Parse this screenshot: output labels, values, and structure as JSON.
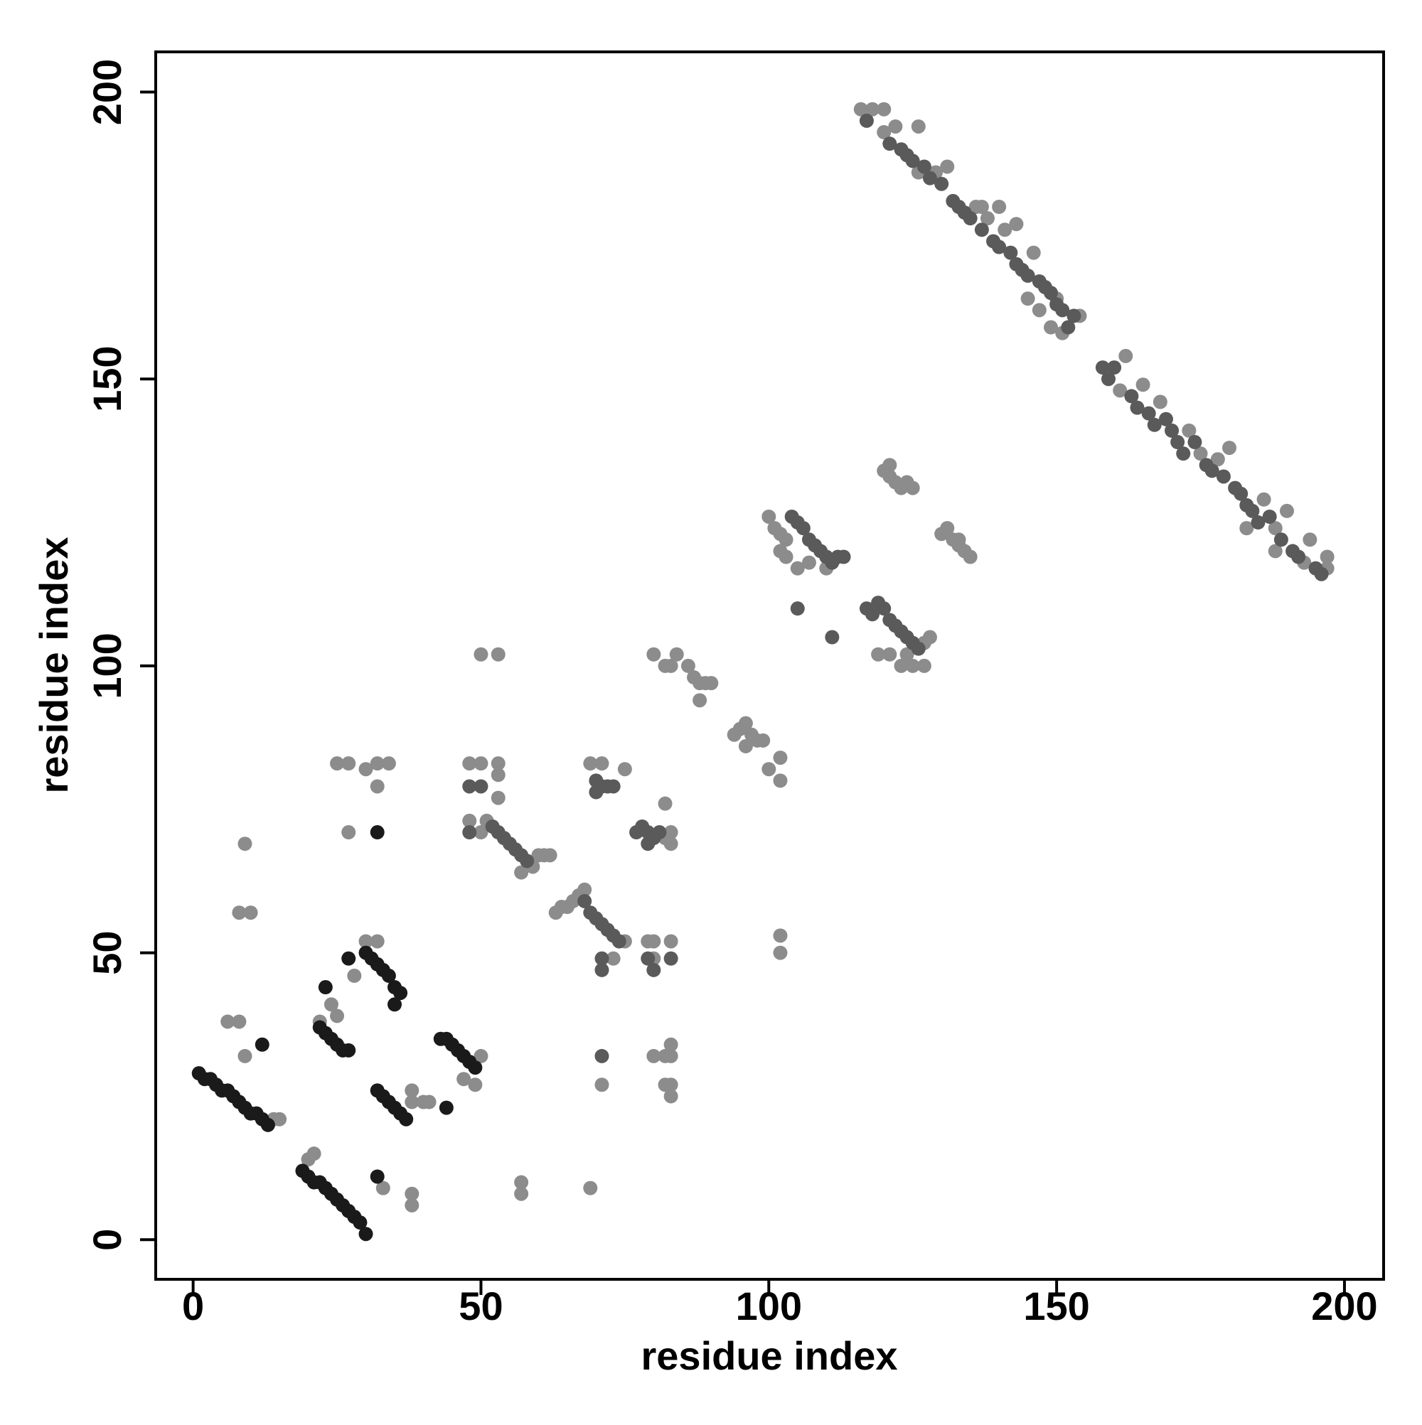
{
  "chart_data": {
    "type": "scatter",
    "xlabel": "residue index",
    "ylabel": "residue index",
    "xlim": [
      -6.5,
      206.8
    ],
    "ylim": [
      -6.9,
      207
    ],
    "xticks": [
      0,
      50,
      100,
      150,
      200
    ],
    "yticks": [
      0,
      50,
      100,
      150,
      200
    ],
    "series": [
      {
        "color": "#8c8c8c",
        "x": [
          14,
          15,
          20,
          21,
          22,
          24,
          25,
          28,
          30,
          32,
          38,
          40,
          41,
          38,
          50,
          47,
          49,
          9,
          8,
          10,
          6,
          8,
          9,
          25,
          27,
          27,
          32,
          34,
          30,
          32,
          33,
          38,
          38,
          57,
          57,
          69,
          71,
          50,
          53,
          51,
          59,
          60,
          61,
          62,
          57,
          50,
          48,
          48,
          50,
          53,
          53,
          53,
          63,
          64,
          65,
          66,
          67,
          68,
          75,
          73,
          69,
          71,
          75,
          82,
          83,
          83,
          82,
          79,
          80,
          83,
          80,
          83,
          82,
          83,
          82,
          83,
          83,
          80,
          80,
          82,
          84,
          83,
          86,
          87,
          88,
          89,
          90,
          88,
          94,
          95,
          96,
          97,
          98,
          96,
          99,
          102,
          100,
          102,
          102,
          102,
          100,
          101,
          102,
          103,
          102,
          103,
          105,
          107,
          110,
          127,
          128,
          119,
          121,
          123,
          125,
          127,
          124,
          120,
          121,
          122,
          123,
          124,
          125,
          121,
          130,
          131,
          132,
          133,
          134,
          135,
          133,
          116,
          118,
          120,
          120,
          122,
          126,
          126,
          129,
          131,
          136,
          138,
          140,
          141,
          143,
          146,
          137,
          145,
          147,
          151,
          154,
          149,
          150,
          161,
          162,
          165,
          168,
          173,
          175,
          178,
          180,
          186,
          188,
          190,
          193,
          194,
          197,
          197,
          183,
          188
        ],
        "values": [
          21,
          21,
          14,
          15,
          38,
          41,
          39,
          46,
          52,
          52,
          24,
          24,
          24,
          26,
          32,
          28,
          27,
          69,
          57,
          57,
          38,
          38,
          32,
          83,
          83,
          71,
          83,
          83,
          82,
          79,
          9,
          8,
          6,
          10,
          8,
          9,
          27,
          102,
          102,
          73,
          65,
          67,
          67,
          67,
          64,
          71,
          73,
          83,
          83,
          83,
          81,
          77,
          57,
          58,
          58,
          59,
          60,
          61,
          52,
          49,
          83,
          83,
          82,
          70,
          71,
          69,
          76,
          52,
          52,
          52,
          49,
          34,
          32,
          32,
          27,
          27,
          25,
          32,
          102,
          100,
          102,
          100,
          100,
          98,
          97,
          97,
          97,
          94,
          88,
          89,
          90,
          88,
          87,
          86,
          87,
          84,
          82,
          80,
          53,
          50,
          126,
          124,
          123,
          122,
          120,
          119,
          117,
          118,
          117,
          104,
          105,
          102,
          102,
          100,
          100,
          100,
          102,
          134,
          133,
          132,
          131,
          132,
          131,
          135,
          123,
          124,
          122,
          121,
          120,
          119,
          122,
          197,
          197,
          197,
          193,
          194,
          194,
          186,
          186,
          187,
          180,
          178,
          180,
          176,
          177,
          172,
          180,
          164,
          162,
          158,
          161,
          159,
          164,
          148,
          154,
          149,
          146,
          141,
          137,
          136,
          138,
          129,
          124,
          127,
          118,
          122,
          119,
          117,
          124,
          120
        ]
      },
      {
        "color": "#5a5a5a",
        "x": [
          52,
          53,
          54,
          55,
          56,
          57,
          58,
          68,
          69,
          70,
          71,
          72,
          73,
          74,
          71,
          71,
          70,
          71,
          72,
          73,
          70,
          77,
          78,
          79,
          80,
          81,
          79,
          79,
          83,
          80,
          104,
          105,
          106,
          107,
          108,
          109,
          110,
          111,
          112,
          113,
          117,
          118,
          119,
          120,
          121,
          122,
          123,
          124,
          125,
          126,
          117,
          121,
          123,
          124,
          125,
          127,
          128,
          130,
          132,
          133,
          134,
          135,
          137,
          139,
          140,
          142,
          143,
          144,
          145,
          147,
          148,
          149,
          150,
          151,
          152,
          153,
          158,
          159,
          160,
          163,
          164,
          166,
          167,
          169,
          170,
          171,
          172,
          174,
          176,
          177,
          179,
          181,
          182,
          183,
          184,
          185,
          187,
          189,
          191,
          192,
          195,
          196,
          48,
          50,
          48,
          71,
          105,
          111
        ],
        "values": [
          72,
          71,
          70,
          69,
          68,
          67,
          66,
          59,
          57,
          56,
          55,
          54,
          53,
          52,
          49,
          47,
          80,
          79,
          79,
          79,
          78,
          71,
          72,
          71,
          70,
          71,
          69,
          49,
          49,
          47,
          126,
          125,
          124,
          122,
          121,
          120,
          119,
          118,
          119,
          119,
          110,
          109,
          111,
          110,
          108,
          107,
          106,
          105,
          104,
          103,
          195,
          191,
          190,
          189,
          188,
          187,
          185,
          184,
          181,
          180,
          179,
          178,
          176,
          174,
          173,
          172,
          170,
          169,
          168,
          167,
          166,
          165,
          163,
          162,
          159,
          161,
          152,
          150,
          152,
          147,
          145,
          144,
          142,
          143,
          141,
          139,
          137,
          139,
          135,
          134,
          133,
          131,
          130,
          128,
          127,
          125,
          126,
          122,
          120,
          119,
          117,
          116,
          79,
          79,
          71,
          32,
          110,
          105
        ]
      },
      {
        "color": "#1a1a1a",
        "x": [
          1,
          2,
          3,
          4,
          5,
          6,
          7,
          8,
          9,
          10,
          11,
          12,
          13,
          19,
          20,
          21,
          22,
          23,
          24,
          25,
          26,
          27,
          28,
          29,
          30,
          22,
          23,
          24,
          25,
          26,
          27,
          23,
          30,
          31,
          32,
          33,
          34,
          35,
          36,
          35,
          27,
          32,
          33,
          34,
          35,
          36,
          37,
          43,
          44,
          45,
          46,
          47,
          48,
          49,
          44,
          32,
          32,
          12
        ],
        "values": [
          29,
          28,
          28,
          27,
          26,
          26,
          25,
          24,
          23,
          22,
          22,
          21,
          20,
          12,
          11,
          10,
          10,
          9,
          8,
          7,
          6,
          5,
          4,
          3,
          1,
          37,
          36,
          35,
          34,
          33,
          33,
          44,
          50,
          49,
          48,
          47,
          46,
          44,
          43,
          41,
          49,
          26,
          25,
          24,
          23,
          22,
          21,
          35,
          35,
          34,
          33,
          32,
          31,
          30,
          23,
          11,
          71,
          34
        ]
      }
    ]
  }
}
